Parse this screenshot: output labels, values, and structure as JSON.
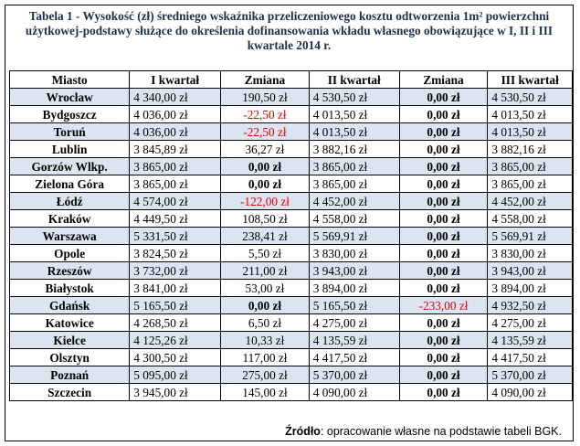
{
  "title": "Tabela 1 - Wysokość (zł) średniego wskaźnika przeliczeniowego kosztu odtworzenia 1m² powierzchni użytkowej-podstawy służące do określenia dofinansowania wkładu własnego obowiązujące w I, II i III kwartale 2014 r.",
  "headers": [
    "Miasto",
    "I kwartał",
    "Zmiana",
    "II kwartał",
    "Zmiana",
    "III kwartał"
  ],
  "rows": [
    {
      "city": "Wrocław",
      "q1": "4 340,00 zł",
      "chg1": "190,50 zł",
      "q2": "4 530,50 zł",
      "chg2": "0,00 zł",
      "q3": "4 530,50 zł"
    },
    {
      "city": "Bydgoszcz",
      "q1": "4 036,00 zł",
      "chg1": "-22,50 zł",
      "q2": "4 013,50 zł",
      "chg2": "0,00 zł",
      "q3": "4 013,50 zł"
    },
    {
      "city": "Toruń",
      "q1": "4 036,00 zł",
      "chg1": "-22,50 zł",
      "q2": "4 013,50 zł",
      "chg2": "0,00 zł",
      "q3": "4 013,50 zł"
    },
    {
      "city": "Lublin",
      "q1": "3 845,89 zł",
      "chg1": "36,27 zł",
      "q2": "3 882,16 zł",
      "chg2": "0,00 zł",
      "q3": "3 882,16 zł"
    },
    {
      "city": "Gorzów Wlkp.",
      "q1": "3 865,00 zł",
      "chg1": "0,00 zł",
      "q2": "3 865,00 zł",
      "chg2": "0,00 zł",
      "q3": "3 865,00 zł"
    },
    {
      "city": "Zielona Góra",
      "q1": "3 865,00 zł",
      "chg1": "0,00 zł",
      "q2": "3 865,00 zł",
      "chg2": "0,00 zł",
      "q3": "3 865,00 zł"
    },
    {
      "city": "Łódź",
      "q1": "4 574,00 zł",
      "chg1": "-122,00 zł",
      "q2": "4 452,00 zł",
      "chg2": "0,00 zł",
      "q3": "4 452,00 zł"
    },
    {
      "city": "Kraków",
      "q1": "4 449,50 zł",
      "chg1": "108,50 zł",
      "q2": "4 558,00 zł",
      "chg2": "0,00 zł",
      "q3": "4 558,00 zł"
    },
    {
      "city": "Warszawa",
      "q1": "5 331,50 zł",
      "chg1": "238,41 zł",
      "q2": "5 569,91 zł",
      "chg2": "0,00 zł",
      "q3": "5 569,91 zł"
    },
    {
      "city": "Opole",
      "q1": "3 824,50 zł",
      "chg1": "5,50 zł",
      "q2": "3 830,00 zł",
      "chg2": "0,00 zł",
      "q3": "3 830,00 zł"
    },
    {
      "city": "Rzeszów",
      "q1": "3 732,00 zł",
      "chg1": "211,00 zł",
      "q2": "3 943,00 zł",
      "chg2": "0,00 zł",
      "q3": "3 943,00 zł"
    },
    {
      "city": "Białystok",
      "q1": "3 841,00 zł",
      "chg1": "53,00 zł",
      "q2": "3 894,00 zł",
      "chg2": "0,00 zł",
      "q3": "3 894,00 zł"
    },
    {
      "city": "Gdańsk",
      "q1": "5 165,50 zł",
      "chg1": "0,00 zł",
      "q2": "5 165,50 zł",
      "chg2": "-233,00 zł",
      "q3": "4 932,50 zł"
    },
    {
      "city": "Katowice",
      "q1": "4 268,50 zł",
      "chg1": "6,50 zł",
      "q2": "4 275,00 zł",
      "chg2": "0,00 zł",
      "q3": "4 275,00 zł"
    },
    {
      "city": "Kielce",
      "q1": "4 125,26 zł",
      "chg1": "10,33 zł",
      "q2": "4 135,59 zł",
      "chg2": "0,00 zł",
      "q3": "4 135,59 zł"
    },
    {
      "city": "Olsztyn",
      "q1": "4 300,50 zł",
      "chg1": "117,00 zł",
      "q2": "4 417,50 zł",
      "chg2": "0,00 zł",
      "q3": "4 417,50 zł"
    },
    {
      "city": "Poznań",
      "q1": "5 095,00 zł",
      "chg1": "275,00 zł",
      "q2": "5 370,00 zł",
      "chg2": "0,00 zł",
      "q3": "5 370,00 zł"
    },
    {
      "city": "Szczecin",
      "q1": "3 945,00 zł",
      "chg1": "145,00 zł",
      "q2": "4 090,00 zł",
      "chg2": "0,00 zł",
      "q3": "4 090,00 zł"
    }
  ],
  "colors": {
    "negative": "#e00000",
    "alt_row": "#dbe5f1",
    "title": "#1f2f4a"
  },
  "source": {
    "label": "Źródło",
    "text": ": opracowanie własne na podstawie tabeli BGK."
  }
}
